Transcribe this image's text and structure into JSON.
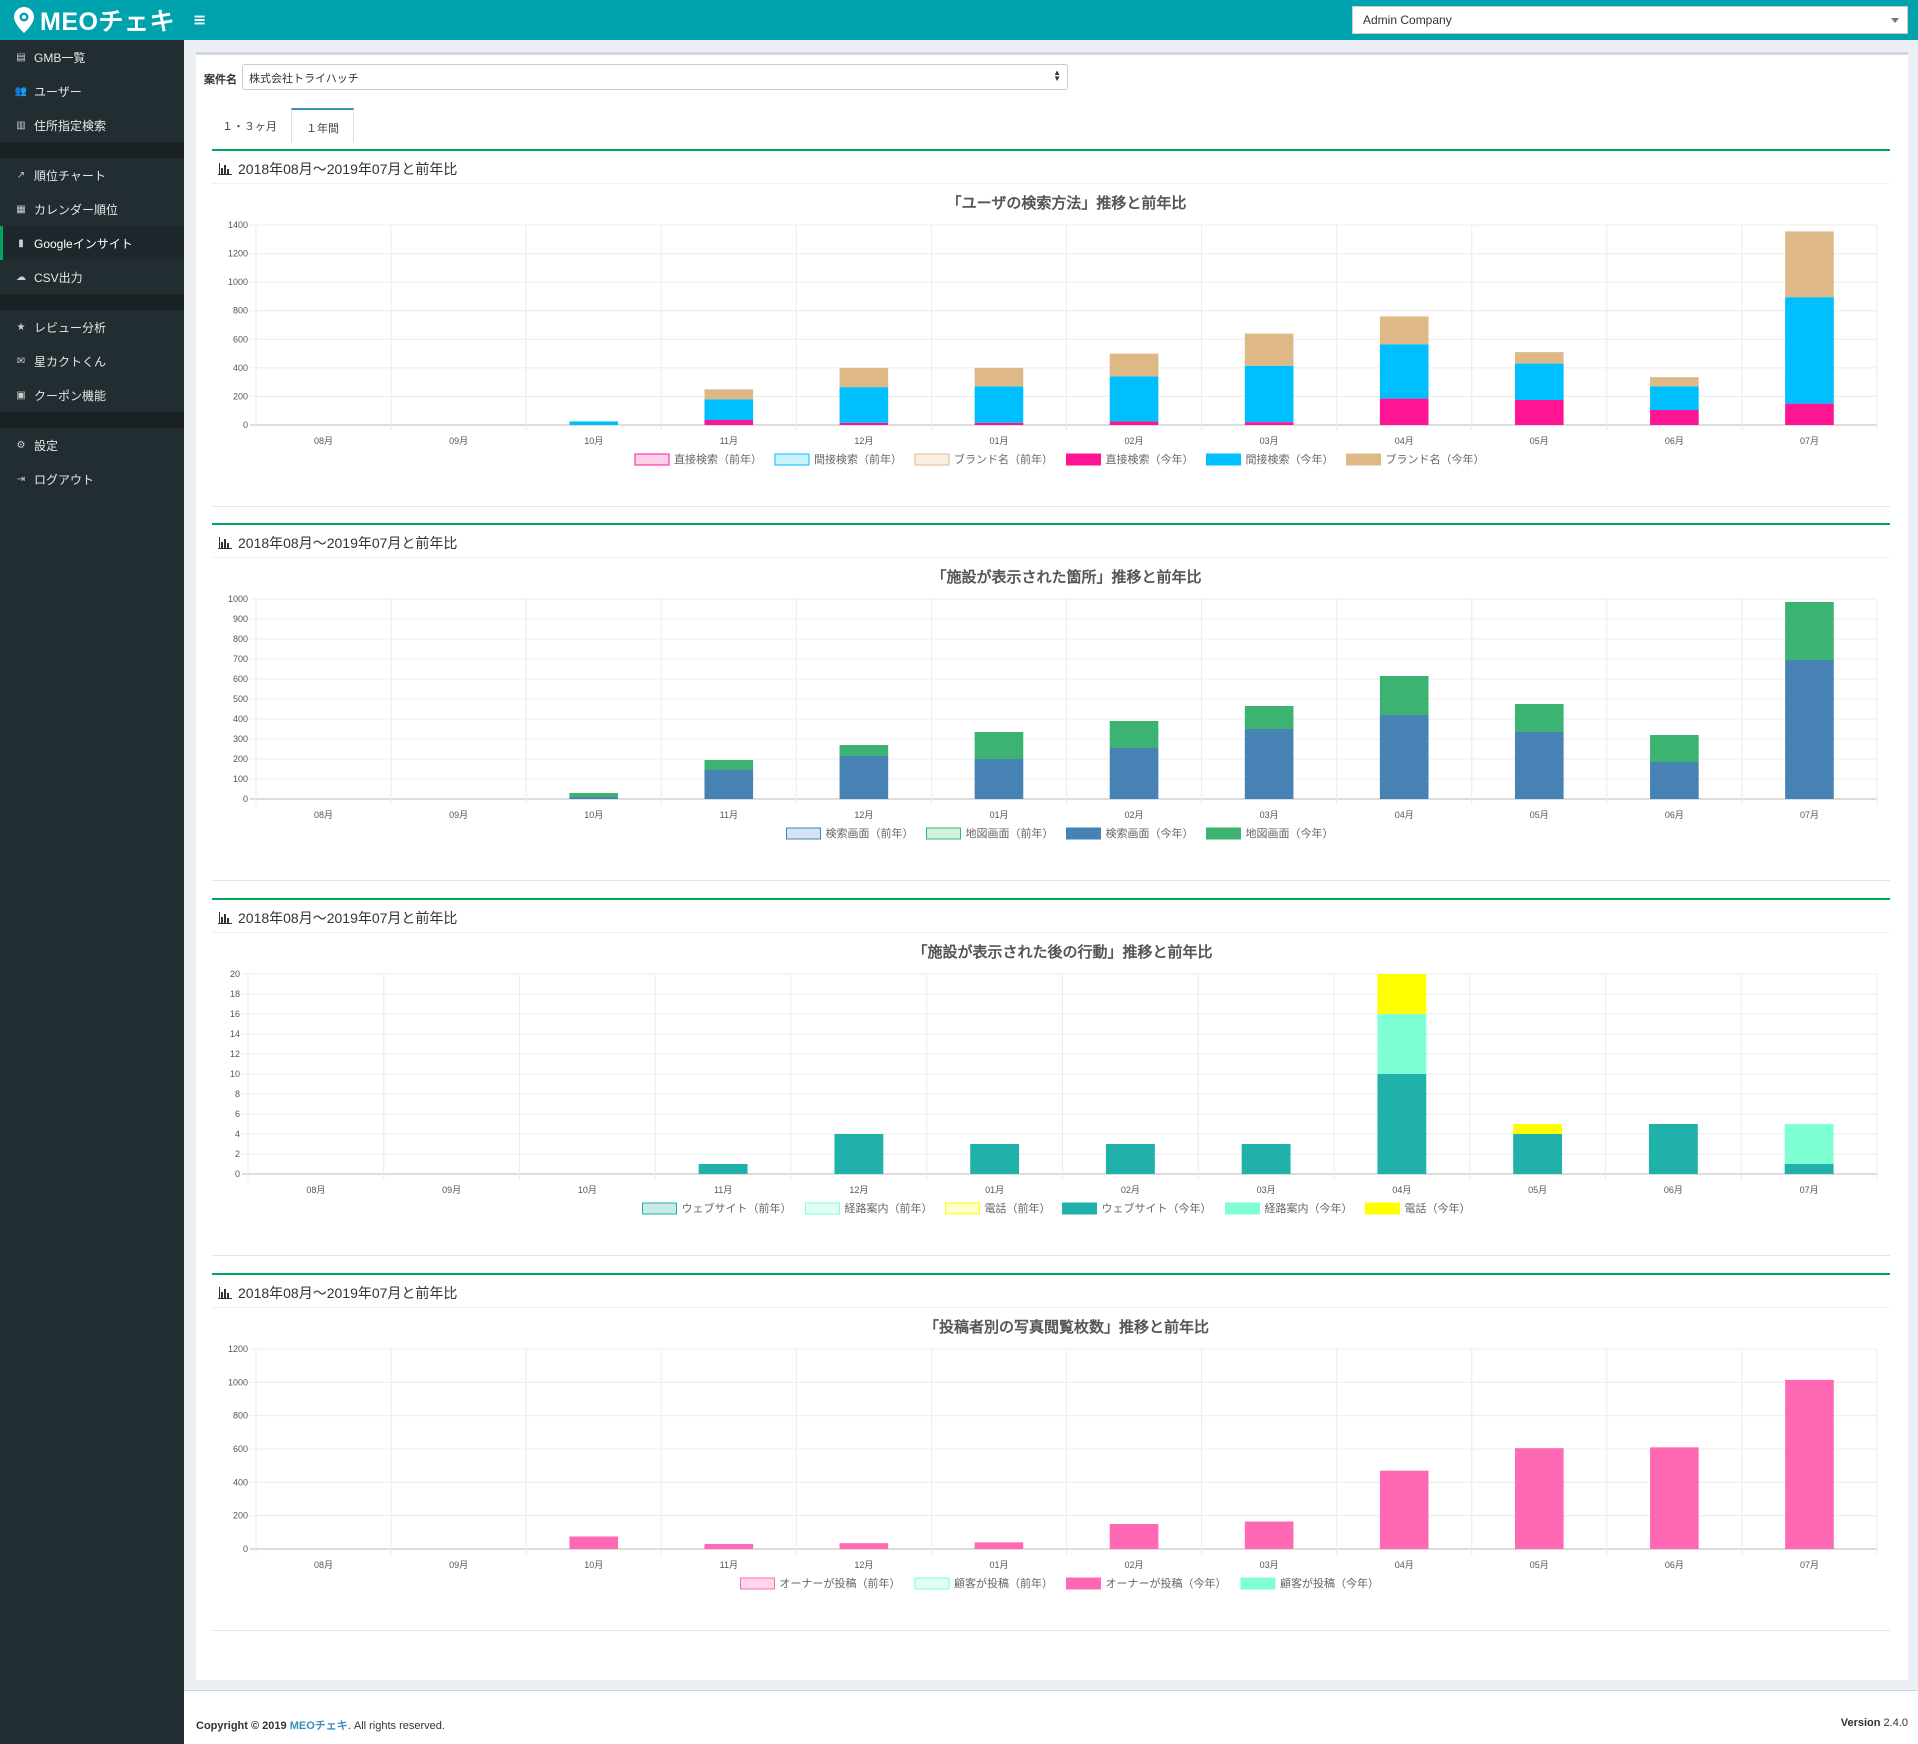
{
  "app": {
    "logo_text": "MEOチェキ",
    "company": "Admin Company"
  },
  "sidebar": {
    "groups": [
      [
        {
          "icon": "database-icon",
          "label": "GMB一覧"
        },
        {
          "icon": "users-icon",
          "label": "ユーザー"
        },
        {
          "icon": "map-icon",
          "label": "住所指定検索"
        }
      ],
      [
        {
          "icon": "line-chart-icon",
          "label": "順位チャート"
        },
        {
          "icon": "calendar-icon",
          "label": "カレンダー順位"
        },
        {
          "icon": "bar-chart-icon",
          "label": "Googleインサイト",
          "active": true
        },
        {
          "icon": "cloud-download-icon",
          "label": "CSV出力"
        }
      ],
      [
        {
          "icon": "star-icon",
          "label": "レビュー分析"
        },
        {
          "icon": "envelope-icon",
          "label": "星カクトくん"
        },
        {
          "icon": "gift-icon",
          "label": "クーポン機能"
        }
      ],
      [
        {
          "icon": "gear-icon",
          "label": "設定"
        },
        {
          "icon": "sign-out-icon",
          "label": "ログアウト"
        }
      ]
    ]
  },
  "filter": {
    "label": "案件名",
    "value": "株式会社トライハッチ"
  },
  "tabs": [
    {
      "label": "１・３ヶ月",
      "active": false
    },
    {
      "label": "１年間",
      "active": true
    }
  ],
  "colors": {
    "accent": "#00a3ad",
    "sidebar": "#222d32",
    "box_border": "#00a65a"
  },
  "chart_data": [
    {
      "type": "bar",
      "stacked": true,
      "section_title": "2018年08月〜2019年07月と前年比",
      "title": "「ユーザの検索方法」推移と前年比",
      "categories": [
        "08月",
        "09月",
        "10月",
        "11月",
        "12月",
        "01月",
        "02月",
        "03月",
        "04月",
        "05月",
        "06月",
        "07月"
      ],
      "ylim": [
        0,
        1400
      ],
      "yticks": [
        0,
        200,
        400,
        600,
        800,
        1000,
        1200,
        1400
      ],
      "legend_position": "bottom",
      "series": [
        {
          "name": "直接検索（前年）",
          "color": "#ffd1e8",
          "border": "#ff1493",
          "values": [
            0,
            0,
            0,
            0,
            0,
            0,
            0,
            0,
            0,
            0,
            0,
            0
          ]
        },
        {
          "name": "間接検索（前年）",
          "color": "#ccf2ff",
          "border": "#00bfff",
          "values": [
            0,
            0,
            0,
            0,
            0,
            0,
            0,
            0,
            0,
            0,
            0,
            0
          ]
        },
        {
          "name": "ブランド名（前年）",
          "color": "#fbefe1",
          "border": "#deb887",
          "values": [
            0,
            0,
            0,
            0,
            0,
            0,
            0,
            0,
            0,
            0,
            0,
            0
          ]
        },
        {
          "name": "直接検索（今年）",
          "color": "#ff1493",
          "values": [
            0,
            0,
            0,
            35,
            15,
            15,
            25,
            20,
            185,
            175,
            105,
            150
          ]
        },
        {
          "name": "間接検索（今年）",
          "color": "#00bfff",
          "values": [
            0,
            0,
            25,
            145,
            250,
            255,
            315,
            395,
            380,
            255,
            165,
            745
          ]
        },
        {
          "name": "ブランド名（今年）",
          "color": "#deb887",
          "values": [
            0,
            0,
            0,
            70,
            135,
            130,
            160,
            225,
            195,
            80,
            65,
            460
          ]
        }
      ]
    },
    {
      "type": "bar",
      "stacked": true,
      "section_title": "2018年08月〜2019年07月と前年比",
      "title": "「施設が表示された箇所」推移と前年比",
      "categories": [
        "08月",
        "09月",
        "10月",
        "11月",
        "12月",
        "01月",
        "02月",
        "03月",
        "04月",
        "05月",
        "06月",
        "07月"
      ],
      "ylim": [
        0,
        1000
      ],
      "yticks": [
        0,
        100,
        200,
        300,
        400,
        500,
        600,
        700,
        800,
        900,
        1000
      ],
      "legend_position": "bottom",
      "series": [
        {
          "name": "検索画面（前年）",
          "color": "#d4e4f2",
          "border": "#4682b4",
          "values": [
            0,
            0,
            0,
            0,
            0,
            0,
            0,
            0,
            0,
            0,
            0,
            0
          ]
        },
        {
          "name": "地図画面（前年）",
          "color": "#d2f0dc",
          "border": "#3cb371",
          "values": [
            0,
            0,
            0,
            0,
            0,
            0,
            0,
            0,
            0,
            0,
            0,
            0
          ]
        },
        {
          "name": "検索画面（今年）",
          "color": "#4682b4",
          "values": [
            0,
            0,
            10,
            145,
            215,
            200,
            255,
            350,
            420,
            335,
            185,
            695
          ]
        },
        {
          "name": "地図画面（今年）",
          "color": "#3cb371",
          "values": [
            0,
            0,
            20,
            50,
            55,
            135,
            135,
            115,
            195,
            140,
            135,
            290
          ]
        }
      ]
    },
    {
      "type": "bar",
      "stacked": true,
      "section_title": "2018年08月〜2019年07月と前年比",
      "title": "「施設が表示された後の行動」推移と前年比",
      "categories": [
        "08月",
        "09月",
        "10月",
        "11月",
        "12月",
        "01月",
        "02月",
        "03月",
        "04月",
        "05月",
        "06月",
        "07月"
      ],
      "ylim": [
        0,
        20
      ],
      "yticks": [
        0,
        2,
        4,
        6,
        8,
        10,
        12,
        14,
        16,
        18,
        20
      ],
      "legend_position": "bottom",
      "series": [
        {
          "name": "ウェブサイト（前年）",
          "color": "#c8ebe8",
          "border": "#20b2aa",
          "values": [
            0,
            0,
            0,
            0,
            0,
            0,
            0,
            0,
            0,
            0,
            0,
            0
          ]
        },
        {
          "name": "経路案内（前年）",
          "color": "#e0fff4",
          "border": "#7fffd4",
          "values": [
            0,
            0,
            0,
            0,
            0,
            0,
            0,
            0,
            0,
            0,
            0,
            0
          ]
        },
        {
          "name": "電話（前年）",
          "color": "#ffffcc",
          "border": "#ffff00",
          "values": [
            0,
            0,
            0,
            0,
            0,
            0,
            0,
            0,
            0,
            0,
            0,
            0
          ]
        },
        {
          "name": "ウェブサイト（今年）",
          "color": "#20b2aa",
          "values": [
            0,
            0,
            0,
            1,
            4,
            3,
            3,
            3,
            10,
            4,
            5,
            1
          ]
        },
        {
          "name": "経路案内（今年）",
          "color": "#7fffd4",
          "values": [
            0,
            0,
            0,
            0,
            0,
            0,
            0,
            0,
            6,
            0,
            0,
            4
          ]
        },
        {
          "name": "電話（今年）",
          "color": "#ffff00",
          "values": [
            0,
            0,
            0,
            0,
            0,
            0,
            0,
            0,
            4,
            1,
            0,
            0
          ]
        }
      ]
    },
    {
      "type": "bar",
      "stacked": true,
      "section_title": "2018年08月〜2019年07月と前年比",
      "title": "「投稿者別の写真閲覧枚数」推移と前年比",
      "categories": [
        "08月",
        "09月",
        "10月",
        "11月",
        "12月",
        "01月",
        "02月",
        "03月",
        "04月",
        "05月",
        "06月",
        "07月"
      ],
      "ylim": [
        0,
        1200
      ],
      "yticks": [
        0,
        200,
        400,
        600,
        800,
        1000,
        1200
      ],
      "legend_position": "bottom",
      "series": [
        {
          "name": "オーナーが投稿（前年）",
          "color": "#ffd6ea",
          "border": "#ff69b4",
          "values": [
            0,
            0,
            0,
            0,
            0,
            0,
            0,
            0,
            0,
            0,
            0,
            0
          ]
        },
        {
          "name": "顧客が投稿（前年）",
          "color": "#e0fff4",
          "border": "#7fffd4",
          "values": [
            0,
            0,
            0,
            0,
            0,
            0,
            0,
            0,
            0,
            0,
            0,
            0
          ]
        },
        {
          "name": "オーナーが投稿（今年）",
          "color": "#ff69b4",
          "values": [
            0,
            0,
            75,
            30,
            35,
            40,
            150,
            165,
            470,
            605,
            610,
            1015
          ]
        },
        {
          "name": "顧客が投稿（今年）",
          "color": "#7fffd4",
          "values": [
            0,
            0,
            0,
            0,
            0,
            0,
            0,
            0,
            0,
            0,
            0,
            0
          ]
        }
      ]
    }
  ],
  "footer": {
    "copyright_prefix": "Copyright © 2019 ",
    "brand": "MEOチェキ",
    "copyright_suffix": ". All rights reserved.",
    "version_label": "Version",
    "version": "2.4.0"
  }
}
